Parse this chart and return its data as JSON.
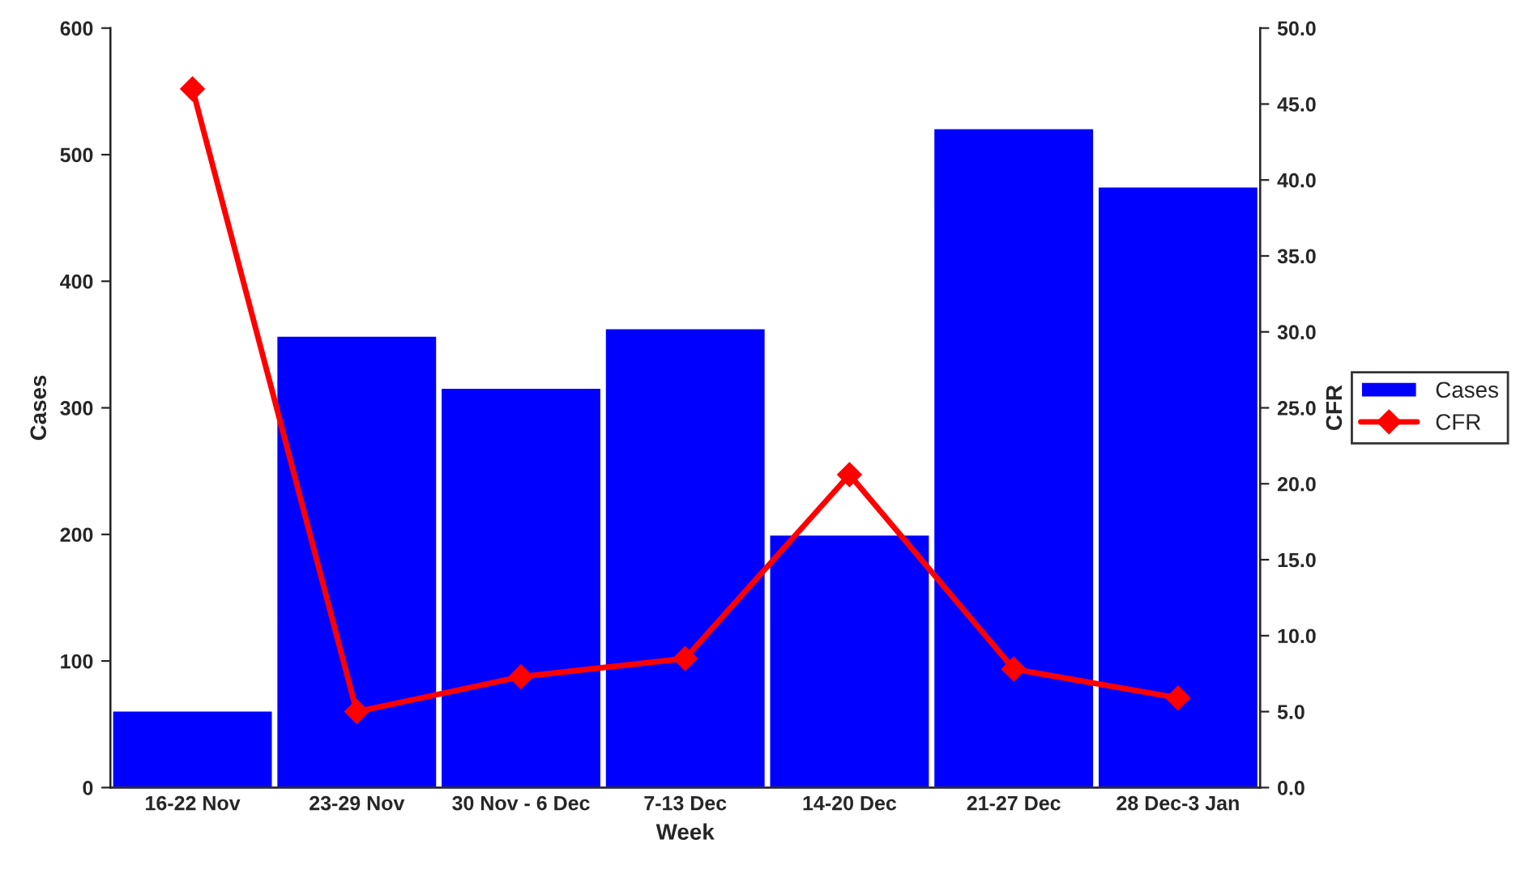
{
  "chart_data": {
    "type": "bar",
    "xlabel": "Week",
    "ylabel": "Cases",
    "y2label": "CFR",
    "categories": [
      "16-22 Nov",
      "23-29 Nov",
      "30 Nov - 6 Dec",
      "7-13 Dec",
      "14-20 Dec",
      "21-27 Dec",
      "28 Dec-3 Jan"
    ],
    "series": [
      {
        "name": "Cases",
        "color": "#0000ff",
        "values": [
          61,
          357,
          316,
          363,
          200,
          521,
          475
        ]
      },
      {
        "name": "CFR",
        "type": "line",
        "axis": "y2",
        "color": "#ff0000",
        "marker": "diamond",
        "values": [
          46.0,
          5.0,
          7.3,
          8.5,
          20.6,
          7.8,
          5.9
        ]
      }
    ],
    "ylim": [
      0,
      600
    ],
    "yticks": [
      0,
      100,
      200,
      300,
      400,
      500,
      600
    ],
    "y2lim": [
      0,
      50
    ],
    "y2ticks": [
      {
        "value": 0,
        "label": "0.0"
      },
      {
        "value": 5,
        "label": "5.0"
      },
      {
        "value": 10,
        "label": "10.0"
      },
      {
        "value": 15,
        "label": "15.0"
      },
      {
        "value": 20,
        "label": "20.0"
      },
      {
        "value": 25,
        "label": "25.0"
      },
      {
        "value": 30,
        "label": "30.0"
      },
      {
        "value": 35,
        "label": "35.0"
      },
      {
        "value": 40,
        "label": "40.0"
      },
      {
        "value": 45,
        "label": "45.0"
      },
      {
        "value": 50,
        "label": "50.0"
      }
    ],
    "grid": false,
    "legend": "right"
  }
}
